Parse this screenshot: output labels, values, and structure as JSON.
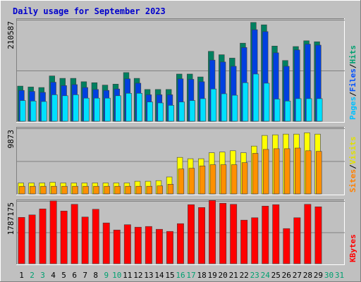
{
  "chart_data": {
    "type": "bar",
    "title": "Daily usage for September 2023",
    "days": [
      {
        "label": "1",
        "weekend": false
      },
      {
        "label": "2",
        "weekend": true
      },
      {
        "label": "3",
        "weekend": true
      },
      {
        "label": "4",
        "weekend": false
      },
      {
        "label": "5",
        "weekend": false
      },
      {
        "label": "6",
        "weekend": false
      },
      {
        "label": "7",
        "weekend": false
      },
      {
        "label": "8",
        "weekend": false
      },
      {
        "label": "9",
        "weekend": true
      },
      {
        "label": "10",
        "weekend": true
      },
      {
        "label": "11",
        "weekend": false
      },
      {
        "label": "12",
        "weekend": false
      },
      {
        "label": "13",
        "weekend": false
      },
      {
        "label": "14",
        "weekend": false
      },
      {
        "label": "15",
        "weekend": false
      },
      {
        "label": "16",
        "weekend": true
      },
      {
        "label": "17",
        "weekend": true
      },
      {
        "label": "18",
        "weekend": false
      },
      {
        "label": "19",
        "weekend": false
      },
      {
        "label": "20",
        "weekend": false
      },
      {
        "label": "21",
        "weekend": false
      },
      {
        "label": "22",
        "weekend": false
      },
      {
        "label": "23",
        "weekend": true
      },
      {
        "label": "24",
        "weekend": true
      },
      {
        "label": "25",
        "weekend": false
      },
      {
        "label": "26",
        "weekend": false
      },
      {
        "label": "27",
        "weekend": false
      },
      {
        "label": "28",
        "weekend": false
      },
      {
        "label": "29",
        "weekend": false
      },
      {
        "label": "30",
        "weekend": true
      },
      {
        "label": "31",
        "weekend": true
      }
    ],
    "panels": [
      {
        "id": "pages-files-hits",
        "max_label": "210587",
        "ymax": 210587,
        "legend": [
          {
            "text": "Pages",
            "color": "#00c0ff"
          },
          {
            "text": "/",
            "color": "#000000"
          },
          {
            "text": "Files",
            "color": "#0050ff"
          },
          {
            "text": "/",
            "color": "#000000"
          },
          {
            "text": "Hits",
            "color": "#00a070"
          }
        ],
        "series": [
          {
            "name": "Hits",
            "color": "#008060",
            "values": [
              73000,
              71000,
              70000,
              94000,
              89000,
              89000,
              82000,
              80000,
              75000,
              77000,
              101000,
              89000,
              66000,
              66000,
              66000,
              98000,
              98000,
              92000,
              145000,
              138000,
              131000,
              162000,
              205000,
              200000,
              156000,
              126000,
              155000,
              167000,
              165000,
              null,
              null
            ]
          },
          {
            "name": "Files",
            "color": "#0040e0",
            "values": [
              64000,
              62000,
              60000,
              81000,
              74000,
              76000,
              70000,
              66000,
              64000,
              67000,
              88000,
              79000,
              55000,
              55000,
              55000,
              88000,
              87000,
              82000,
              127000,
              123000,
              114000,
              153000,
              190000,
              186000,
              142000,
              114000,
              148000,
              160000,
              158000,
              null,
              null
            ]
          },
          {
            "name": "Pages",
            "color": "#00e0ff",
            "values": [
              43000,
              42000,
              41000,
              55000,
              53000,
              55000,
              48000,
              48000,
              48000,
              53000,
              58000,
              58000,
              40000,
              38000,
              33000,
              40000,
              43000,
              47000,
              67000,
              57000,
              54000,
              80000,
              98000,
              79000,
              46000,
              42000,
              47000,
              47000,
              47000,
              null,
              null
            ]
          }
        ]
      },
      {
        "id": "sites-visits",
        "max_label": "9873",
        "ymax": 9873,
        "legend": [
          {
            "text": "Sites",
            "color": "#ff8000"
          },
          {
            "text": "/",
            "color": "#000000"
          },
          {
            "text": "Visits",
            "color": "#e0e000"
          }
        ],
        "series": [
          {
            "name": "Visits",
            "color": "#ffff00",
            "values": [
              1650,
              1650,
              1650,
              1750,
              1650,
              1650,
              1650,
              1650,
              1650,
              1650,
              1650,
              1900,
              1900,
              2000,
              2550,
              5500,
              5300,
              5300,
              6200,
              6300,
              6500,
              6200,
              7200,
              8800,
              8900,
              9000,
              9000,
              9200,
              9000,
              null,
              null
            ]
          },
          {
            "name": "Sites",
            "color": "#ff9000",
            "values": [
              1150,
              1150,
              1150,
              1150,
              1150,
              1150,
              1150,
              1150,
              1150,
              1150,
              1150,
              1150,
              1150,
              1200,
              1450,
              3750,
              3850,
              4200,
              4400,
              4400,
              4400,
              4700,
              6100,
              6700,
              6800,
              6800,
              6900,
              6500,
              6400,
              null,
              null
            ]
          }
        ]
      },
      {
        "id": "kbytes",
        "max_label": "1787175",
        "ymax": 1787175,
        "legend": [
          {
            "text": "KBytes",
            "color": "#ff0000"
          }
        ],
        "series": [
          {
            "name": "KBytes",
            "color": "#ff0000",
            "values": [
              1320000,
              1390000,
              1560000,
              1787175,
              1500000,
              1690000,
              1330000,
              1550000,
              1160000,
              960000,
              1110000,
              1040000,
              1060000,
              980000,
              920000,
              1140000,
              1680000,
              1600000,
              1800000,
              1720000,
              1690000,
              1240000,
              1310000,
              1640000,
              1680000,
              1000000,
              1310000,
              1690000,
              1620000,
              null,
              null
            ]
          }
        ]
      }
    ]
  }
}
